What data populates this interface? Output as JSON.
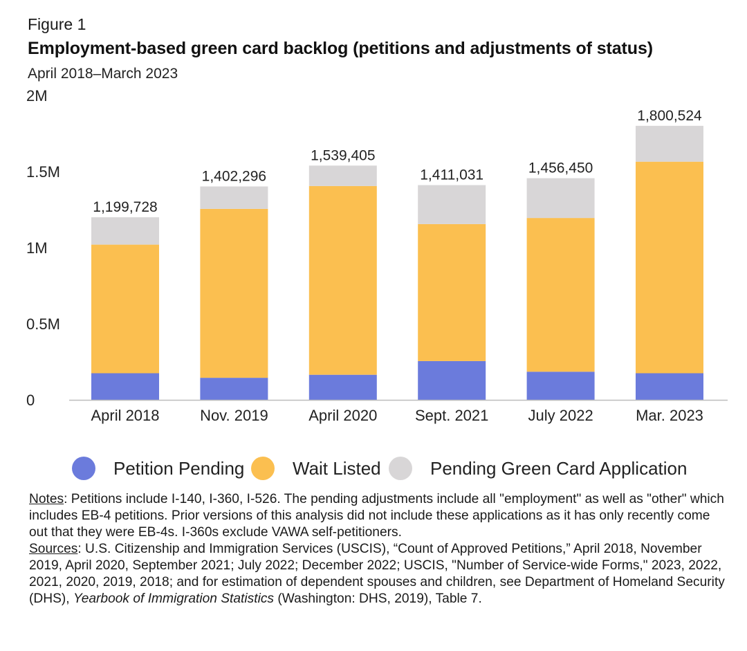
{
  "figure_label": "Figure 1",
  "title": "Employment-based green card backlog (petitions and adjustments of status)",
  "subtitle": "April 2018–March 2023",
  "colors": {
    "petition_pending": "#6b7bdc",
    "wait_listed": "#fbbf50",
    "pending_green_card": "#d8d6d7",
    "axis": "#bdbdbd"
  },
  "chart_data": {
    "type": "bar",
    "stacked": true,
    "title": "Employment-based green card backlog (petitions and adjustments of status)",
    "xlabel": "",
    "ylabel": "",
    "ylim": [
      0,
      2000000
    ],
    "y_ticks": [
      0,
      500000,
      1000000,
      1500000,
      2000000
    ],
    "y_tick_labels": [
      "0",
      "0.5M",
      "1M",
      "1.5M",
      "2M"
    ],
    "grid": false,
    "categories": [
      "April 2018",
      "Nov. 2019",
      "April 2020",
      "Sept. 2021",
      "July 2022",
      "Mar. 2023"
    ],
    "series": [
      {
        "name": "Petition Pending",
        "values": [
          175000,
          145000,
          165000,
          255000,
          185000,
          175000
        ]
      },
      {
        "name": "Wait Listed",
        "values": [
          845000,
          1110000,
          1240000,
          900000,
          1010000,
          1390000
        ]
      },
      {
        "name": "Pending Green Card Application",
        "values": [
          179728,
          147296,
          134405,
          256031,
          261450,
          235524
        ]
      }
    ],
    "totals": [
      1199728,
      1402296,
      1539405,
      1411031,
      1456450,
      1800524
    ],
    "total_labels": [
      "1,199,728",
      "1,402,296",
      "1,539,405",
      "1,411,031",
      "1,456,450",
      "1,800,524"
    ],
    "legend_position": "bottom"
  },
  "notes": {
    "notes_label": "Notes",
    "notes_text": ": Petitions include I-140, I-360, I-526. The pending adjustments include all \"employment\" as well as \"other\" which includes EB-4 petitions. Prior versions of this analysis did not include these applications as it has only recently come out that they were EB-4s. I-360s exclude VAWA self-petitioners.",
    "sources_label": "Sources",
    "sources_text": ": U.S. Citizenship and Immigration Services (USCIS), “Count of Approved Petitions,” April 2018, November 2019, April 2020, September 2021; July 2022; December 2022; USCIS, \"Number of Service-wide Forms,\" 2023, 2022, 2021, 2020, 2019, 2018; and for estimation of dependent spouses and children, see Department of Homeland Security (DHS), ",
    "sources_italic": "Yearbook of Immigration Statistics",
    "sources_end": " (Washington: DHS, 2019), Table 7."
  }
}
